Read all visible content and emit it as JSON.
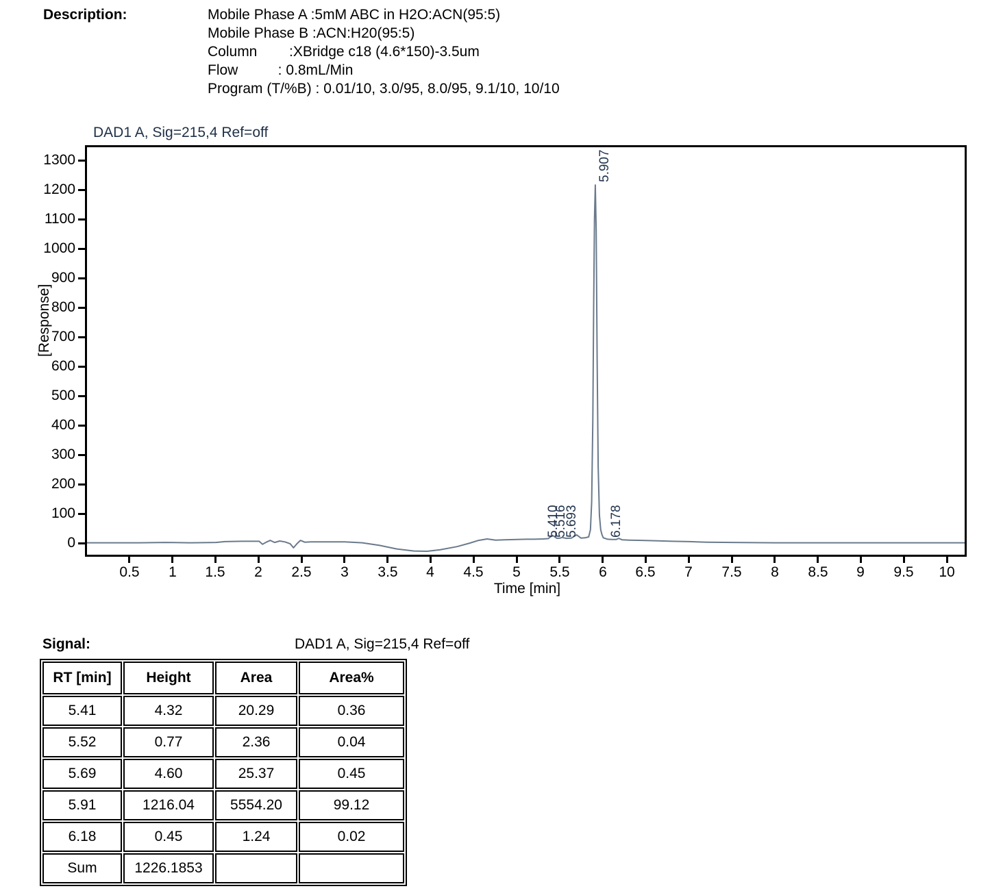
{
  "description": {
    "label": "Description:",
    "lines": [
      "Mobile Phase A :5mM ABC in H2O:ACN(95:5)",
      "Mobile Phase B :ACN:H20(95:5)",
      "Column        :XBridge c18 (4.6*150)-3.5um",
      "Flow          : 0.8mL/Min",
      "Program (T/%B) : 0.01/10, 3.0/95, 8.0/95, 9.1/10, 10/10"
    ]
  },
  "chart_data": {
    "type": "line",
    "title": "DAD1 A, Sig=215,4 Ref=off",
    "xlabel": "Time [min]",
    "ylabel": "[Response]",
    "xlim": [
      0,
      10.2
    ],
    "ylim": [
      -40,
      1385
    ],
    "grid": "off",
    "x_ticks": [
      "0.5",
      "1",
      "1.5",
      "2",
      "2.5",
      "3",
      "3.5",
      "4",
      "4.5",
      "5",
      "5.5",
      "6",
      "6.5",
      "7",
      "7.5",
      "8",
      "8.5",
      "9",
      "9.5",
      "10"
    ],
    "y_ticks": [
      "0",
      "100",
      "200",
      "300",
      "400",
      "500",
      "600",
      "700",
      "800",
      "900",
      "1000",
      "1100",
      "1200",
      "1300"
    ],
    "curve_color": "#6a7a8c",
    "label_color": "#22334d",
    "peaks": [
      {
        "rt": 5.41,
        "label": "5.410",
        "size": "small",
        "dx": 2
      },
      {
        "rt": 5.516,
        "label": "5.516",
        "size": "small",
        "dx": -1
      },
      {
        "rt": 5.693,
        "label": "5.693",
        "size": "small",
        "dx": -7
      },
      {
        "rt": 5.907,
        "label": "5.907",
        "size": "big",
        "dx": 14
      },
      {
        "rt": 6.178,
        "label": "6.178",
        "size": "small",
        "dx": -3
      }
    ],
    "curve_points": [
      [
        0.0,
        1
      ],
      [
        0.3,
        1
      ],
      [
        0.6,
        1
      ],
      [
        0.9,
        2
      ],
      [
        1.2,
        1
      ],
      [
        1.5,
        2
      ],
      [
        1.6,
        5
      ],
      [
        1.8,
        6
      ],
      [
        2.0,
        6
      ],
      [
        2.04,
        -4
      ],
      [
        2.09,
        4
      ],
      [
        2.13,
        9
      ],
      [
        2.18,
        2
      ],
      [
        2.24,
        7
      ],
      [
        2.3,
        4
      ],
      [
        2.36,
        -2
      ],
      [
        2.4,
        -16
      ],
      [
        2.44,
        -2
      ],
      [
        2.48,
        9
      ],
      [
        2.53,
        3
      ],
      [
        2.6,
        4
      ],
      [
        2.8,
        4
      ],
      [
        3.0,
        4
      ],
      [
        3.2,
        1
      ],
      [
        3.4,
        -8
      ],
      [
        3.6,
        -20
      ],
      [
        3.8,
        -27
      ],
      [
        3.95,
        -28
      ],
      [
        4.1,
        -23
      ],
      [
        4.3,
        -12
      ],
      [
        4.45,
        0
      ],
      [
        4.55,
        9
      ],
      [
        4.65,
        14
      ],
      [
        4.75,
        10
      ],
      [
        4.85,
        11
      ],
      [
        5.0,
        12
      ],
      [
        5.1,
        13
      ],
      [
        5.2,
        13
      ],
      [
        5.3,
        14
      ],
      [
        5.36,
        15
      ],
      [
        5.41,
        26
      ],
      [
        5.46,
        16
      ],
      [
        5.5,
        17
      ],
      [
        5.52,
        19
      ],
      [
        5.57,
        16
      ],
      [
        5.63,
        17
      ],
      [
        5.69,
        28
      ],
      [
        5.74,
        17
      ],
      [
        5.79,
        18
      ],
      [
        5.83,
        21
      ],
      [
        5.85,
        45
      ],
      [
        5.865,
        140
      ],
      [
        5.878,
        420
      ],
      [
        5.888,
        800
      ],
      [
        5.897,
        1100
      ],
      [
        5.907,
        1216
      ],
      [
        5.917,
        1060
      ],
      [
        5.928,
        620
      ],
      [
        5.94,
        260
      ],
      [
        5.955,
        95
      ],
      [
        5.97,
        45
      ],
      [
        5.985,
        28
      ],
      [
        6.0,
        18
      ],
      [
        6.05,
        13
      ],
      [
        6.1,
        12
      ],
      [
        6.15,
        12
      ],
      [
        6.178,
        16
      ],
      [
        6.22,
        11
      ],
      [
        6.3,
        10
      ],
      [
        6.45,
        9
      ],
      [
        6.6,
        8
      ],
      [
        6.8,
        6
      ],
      [
        7.0,
        5
      ],
      [
        7.2,
        3
      ],
      [
        7.5,
        2
      ],
      [
        8.0,
        1
      ],
      [
        8.5,
        1
      ],
      [
        9.0,
        1
      ],
      [
        9.5,
        1
      ],
      [
        10.0,
        1
      ],
      [
        10.2,
        1
      ]
    ]
  },
  "signal": {
    "label": "Signal:",
    "value": "DAD1 A, Sig=215,4 Ref=off"
  },
  "table": {
    "headers": [
      "RT [min]",
      "Height",
      "Area",
      "Area%"
    ],
    "rows": [
      [
        "5.41",
        "4.32",
        "20.29",
        "0.36"
      ],
      [
        "5.52",
        "0.77",
        "2.36",
        "0.04"
      ],
      [
        "5.69",
        "4.60",
        "25.37",
        "0.45"
      ],
      [
        "5.91",
        "1216.04",
        "5554.20",
        "99.12"
      ],
      [
        "6.18",
        "0.45",
        "1.24",
        "0.02"
      ],
      [
        "Sum",
        "1226.1853",
        "",
        ""
      ]
    ]
  }
}
